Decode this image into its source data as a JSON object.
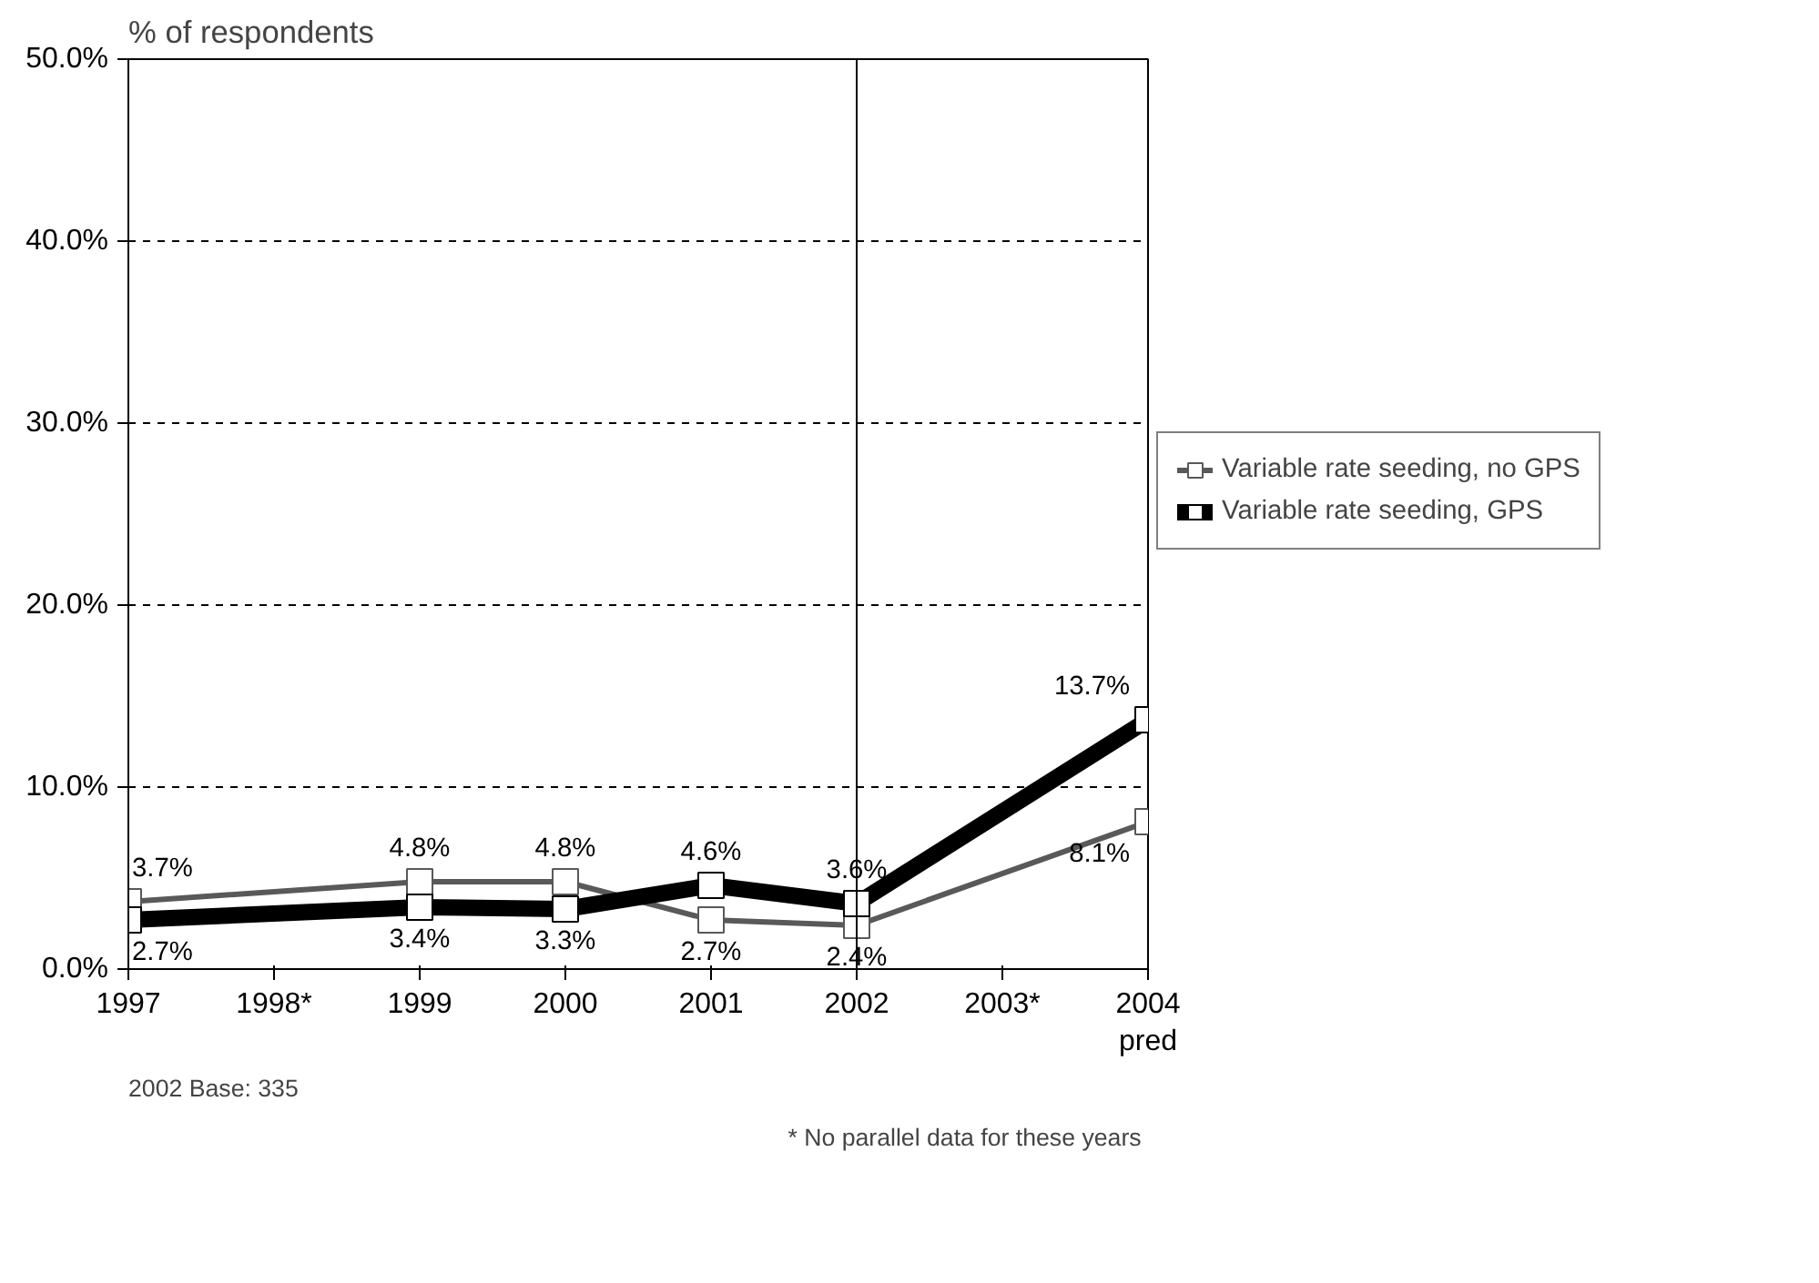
{
  "chart_data": {
    "type": "line",
    "ylabel": "% of respondents",
    "categories": [
      "1997",
      "1998*",
      "1999",
      "2000",
      "2001",
      "2002",
      "2003*",
      "2004\npred"
    ],
    "series": [
      {
        "name": "Variable rate seeding, no GPS",
        "color": "#595959",
        "values": [
          3.7,
          null,
          4.8,
          4.8,
          2.7,
          2.4,
          null,
          8.1
        ],
        "value_labels": [
          "3.7%",
          null,
          "4.8%",
          "4.8%",
          "2.7%",
          "2.4%",
          null,
          "8.1%"
        ]
      },
      {
        "name": "Variable rate seeding, GPS",
        "color": "#000000",
        "values": [
          2.7,
          null,
          3.4,
          3.3,
          4.6,
          3.6,
          null,
          13.7
        ],
        "value_labels": [
          "2.7%",
          null,
          "3.4%",
          "3.3%",
          "4.6%",
          "3.6%",
          null,
          "13.7%"
        ]
      }
    ],
    "ylim": [
      0,
      50
    ],
    "yticks": [
      {
        "value": 0,
        "label": "0.0%"
      },
      {
        "value": 10,
        "label": "10.0%"
      },
      {
        "value": 20,
        "label": "20.0%"
      },
      {
        "value": 30,
        "label": "30.0%"
      },
      {
        "value": 40,
        "label": "40.0%"
      },
      {
        "value": 50,
        "label": "50.0%"
      }
    ],
    "grid": "y",
    "line_style": "solid",
    "marker": "square",
    "legend": "right",
    "ref_lines": [
      {
        "axis": "x",
        "value": "2002",
        "color": "#000000"
      }
    ],
    "annotations": [
      "2002 Base:  335",
      "* No  parallel data for these years"
    ]
  }
}
